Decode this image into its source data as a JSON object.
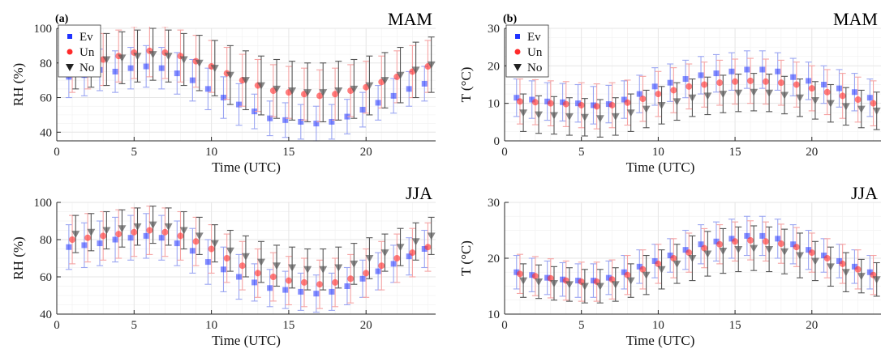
{
  "figure": {
    "x_ticks": [
      0,
      5,
      10,
      15,
      20
    ],
    "xlabel": "Time (UTC)",
    "legend": [
      "Ev",
      "Un",
      "No"
    ],
    "colors": {
      "Ev": "#1f32ff",
      "Un": "#ff2a2a",
      "No": "#555555",
      "Un_err": "#f5a3a3",
      "Ev_err": "#9aa5f2"
    }
  },
  "chart_data": [
    {
      "type": "scatter",
      "panel_tag": "(a)",
      "title": "MAM",
      "xlabel": "Time (UTC)",
      "ylabel": "RH (%)",
      "xlim": [
        0,
        24.5
      ],
      "ylim": [
        35,
        100
      ],
      "yticks": [
        40,
        60,
        80,
        100
      ],
      "x": [
        1,
        2,
        3,
        4,
        5,
        6,
        7,
        8,
        9,
        10,
        11,
        12,
        13,
        14,
        15,
        16,
        17,
        18,
        19,
        20,
        21,
        22,
        23,
        24
      ],
      "series": [
        {
          "name": "Ev",
          "values": [
            72,
            73,
            76,
            75,
            77,
            78,
            77,
            74,
            70,
            65,
            60,
            56,
            52,
            48,
            47,
            46,
            45,
            46,
            49,
            53,
            57,
            61,
            65,
            68
          ],
          "err_low": [
            12,
            12,
            12,
            12,
            12,
            12,
            12,
            12,
            12,
            12,
            12,
            12,
            10,
            10,
            10,
            10,
            10,
            10,
            10,
            10,
            10,
            10,
            10,
            10
          ],
          "err_high": [
            12,
            12,
            12,
            12,
            12,
            12,
            12,
            12,
            12,
            12,
            12,
            12,
            10,
            10,
            10,
            10,
            10,
            10,
            10,
            10,
            10,
            10,
            10,
            10
          ]
        },
        {
          "name": "Un",
          "values": [
            78,
            80,
            82,
            84,
            86,
            87,
            86,
            84,
            81,
            78,
            74,
            70,
            67,
            64,
            63,
            62,
            61,
            62,
            64,
            66,
            69,
            72,
            75,
            78
          ],
          "err_low": [
            15,
            15,
            15,
            15,
            15,
            15,
            15,
            15,
            15,
            15,
            15,
            15,
            15,
            15,
            15,
            15,
            15,
            15,
            15,
            15,
            15,
            15,
            15,
            15
          ],
          "err_high": [
            15,
            15,
            15,
            15,
            15,
            15,
            15,
            15,
            15,
            15,
            15,
            15,
            15,
            15,
            15,
            15,
            15,
            15,
            15,
            15,
            15,
            15,
            15,
            15
          ]
        },
        {
          "name": "No",
          "values": [
            80,
            81,
            82,
            83,
            84,
            85,
            84,
            82,
            80,
            77,
            73,
            70,
            67,
            65,
            64,
            63,
            63,
            64,
            65,
            67,
            70,
            73,
            76,
            79
          ],
          "err_low": [
            15,
            15,
            15,
            15,
            15,
            15,
            15,
            15,
            16,
            16,
            17,
            17,
            17,
            17,
            17,
            17,
            17,
            17,
            17,
            17,
            16,
            16,
            16,
            16
          ],
          "err_high": [
            15,
            15,
            15,
            15,
            15,
            15,
            15,
            15,
            16,
            16,
            17,
            17,
            17,
            17,
            17,
            17,
            17,
            17,
            17,
            17,
            16,
            16,
            16,
            16
          ]
        }
      ]
    },
    {
      "type": "scatter",
      "panel_tag": "(b)",
      "title": "MAM",
      "xlabel": "Time (UTC)",
      "ylabel": "T (°C)",
      "xlim": [
        0,
        24.5
      ],
      "ylim": [
        0,
        30
      ],
      "yticks": [
        0,
        10,
        20,
        30
      ],
      "x": [
        1,
        2,
        3,
        4,
        5,
        6,
        7,
        8,
        9,
        10,
        11,
        12,
        13,
        14,
        15,
        16,
        17,
        18,
        19,
        20,
        21,
        22,
        23,
        24
      ],
      "series": [
        {
          "name": "Ev",
          "values": [
            11.5,
            11,
            10.5,
            10.3,
            10,
            9.5,
            9.8,
            11,
            12.5,
            14.5,
            15.5,
            16.5,
            17.5,
            18,
            18.5,
            19,
            19,
            18.5,
            17,
            16,
            15,
            14,
            13,
            11.5
          ],
          "err_low": [
            5,
            5,
            5,
            5,
            5,
            5,
            5,
            5,
            5,
            5,
            5,
            5,
            5,
            5,
            5,
            5,
            5,
            5,
            5,
            5,
            5,
            5,
            5,
            5
          ],
          "err_high": [
            5,
            5,
            5,
            5,
            5,
            5,
            5,
            5,
            5,
            5,
            5,
            5,
            5,
            5,
            5,
            5,
            5,
            5,
            5,
            5,
            5,
            5,
            5,
            5
          ]
        },
        {
          "name": "Un",
          "values": [
            10.5,
            10.3,
            10,
            9.8,
            9.5,
            9.2,
            9.5,
            10.2,
            11.2,
            12.5,
            13.5,
            14.5,
            15,
            15.5,
            15.8,
            16,
            15.8,
            15.5,
            15,
            14,
            13,
            12,
            11,
            10
          ],
          "err_low": [
            6,
            6,
            6,
            6,
            6,
            6,
            6,
            6,
            6,
            6,
            6,
            6,
            6,
            6,
            6,
            6,
            6,
            6,
            6,
            6,
            6,
            6,
            6,
            6
          ],
          "err_high": [
            6,
            6,
            6,
            6,
            6,
            6,
            6,
            6,
            6,
            6,
            6,
            6,
            6,
            6,
            6,
            6,
            6,
            6,
            6,
            6,
            6,
            6,
            6,
            6
          ]
        },
        {
          "name": "No",
          "values": [
            7.5,
            7,
            6.8,
            6.5,
            6.3,
            6,
            6.5,
            7.5,
            8.5,
            9.5,
            10.5,
            11.5,
            12,
            12.5,
            12.8,
            13,
            12.8,
            12.2,
            11.5,
            10.8,
            10,
            9.2,
            8.5,
            8
          ],
          "err_low": [
            5,
            5,
            5,
            5,
            5,
            5,
            5,
            5,
            5,
            5,
            5,
            5,
            5,
            5,
            5,
            5,
            5,
            5,
            5,
            5,
            5,
            5,
            5,
            5
          ],
          "err_high": [
            5,
            5,
            5,
            5,
            5,
            5,
            5,
            5,
            5,
            5,
            5,
            5,
            5,
            5,
            5,
            5,
            5,
            5,
            5,
            5,
            5,
            5,
            5,
            5
          ]
        }
      ]
    },
    {
      "type": "scatter",
      "title": "JJA",
      "xlabel": "Time (UTC)",
      "ylabel": "RH (%)",
      "xlim": [
        0,
        24.5
      ],
      "ylim": [
        40,
        100
      ],
      "yticks": [
        40,
        60,
        80,
        100
      ],
      "x": [
        1,
        2,
        3,
        4,
        5,
        6,
        7,
        8,
        9,
        10,
        11,
        12,
        13,
        14,
        15,
        16,
        17,
        18,
        19,
        20,
        21,
        22,
        23,
        24
      ],
      "series": [
        {
          "name": "Ev",
          "values": [
            76,
            77,
            78,
            80,
            81,
            82,
            81,
            78,
            74,
            68,
            64,
            60,
            57,
            54,
            53,
            52,
            51,
            52,
            55,
            59,
            63,
            67,
            71,
            75
          ],
          "err_low": [
            12,
            12,
            12,
            12,
            12,
            12,
            12,
            12,
            12,
            12,
            12,
            12,
            10,
            10,
            10,
            10,
            10,
            10,
            10,
            10,
            10,
            10,
            10,
            10
          ],
          "err_high": [
            12,
            12,
            12,
            12,
            12,
            12,
            12,
            12,
            12,
            12,
            12,
            12,
            10,
            10,
            10,
            10,
            10,
            10,
            10,
            10,
            10,
            10,
            10,
            10
          ]
        },
        {
          "name": "Un",
          "values": [
            80,
            81,
            82,
            83,
            84,
            85,
            84,
            82,
            79,
            75,
            70,
            66,
            62,
            60,
            58,
            57,
            56,
            57,
            59,
            62,
            66,
            70,
            73,
            76
          ],
          "err_low": [
            13,
            13,
            13,
            13,
            13,
            13,
            13,
            13,
            13,
            13,
            13,
            13,
            13,
            13,
            13,
            13,
            13,
            13,
            13,
            13,
            13,
            13,
            13,
            13
          ],
          "err_high": [
            13,
            13,
            13,
            13,
            13,
            13,
            13,
            13,
            13,
            13,
            13,
            13,
            13,
            13,
            13,
            13,
            13,
            13,
            13,
            13,
            13,
            13,
            13,
            13
          ]
        },
        {
          "name": "No",
          "values": [
            83,
            84,
            85,
            86,
            87,
            88,
            87,
            85,
            82,
            78,
            74,
            71,
            68,
            66,
            65,
            64,
            64,
            65,
            67,
            70,
            73,
            76,
            79,
            82
          ],
          "err_low": [
            10,
            10,
            10,
            10,
            10,
            10,
            10,
            10,
            10,
            10,
            11,
            11,
            11,
            11,
            11,
            11,
            11,
            11,
            11,
            11,
            10,
            10,
            10,
            10
          ],
          "err_high": [
            10,
            10,
            10,
            10,
            10,
            10,
            10,
            10,
            10,
            10,
            11,
            11,
            11,
            11,
            11,
            11,
            11,
            11,
            11,
            11,
            10,
            10,
            10,
            10
          ]
        }
      ]
    },
    {
      "type": "scatter",
      "title": "JJA",
      "xlabel": "Time (UTC)",
      "ylabel": "T (°C)",
      "xlim": [
        0,
        24.5
      ],
      "ylim": [
        10,
        30
      ],
      "yticks": [
        10,
        20,
        30
      ],
      "x": [
        1,
        2,
        3,
        4,
        5,
        6,
        7,
        8,
        9,
        10,
        11,
        12,
        13,
        14,
        15,
        16,
        17,
        18,
        19,
        20,
        21,
        22,
        23,
        24
      ],
      "series": [
        {
          "name": "Ev",
          "values": [
            17.5,
            17,
            16.5,
            16.2,
            16,
            16,
            16.5,
            17.5,
            18.5,
            19.5,
            20.5,
            21.5,
            22.5,
            23,
            23.5,
            24,
            24,
            23.5,
            22.5,
            21.5,
            20.5,
            19.5,
            18.5,
            17.5
          ],
          "err_low": [
            3,
            3,
            3,
            3,
            3,
            3,
            3,
            3,
            3,
            3,
            3,
            3.5,
            3.5,
            3.5,
            3.5,
            3.5,
            3.5,
            3.5,
            3.5,
            3.5,
            3,
            3,
            3,
            3
          ],
          "err_high": [
            3,
            3,
            3,
            3,
            3,
            3,
            3,
            3,
            3,
            3,
            3,
            3.5,
            3.5,
            3.5,
            3.5,
            3.5,
            3.5,
            3.5,
            3.5,
            3.5,
            3,
            3,
            3,
            3
          ]
        },
        {
          "name": "Un",
          "values": [
            17.2,
            16.8,
            16.4,
            16,
            15.8,
            15.8,
            16.2,
            17,
            18,
            19,
            20,
            21,
            21.8,
            22.5,
            23,
            23.2,
            23,
            22.6,
            22,
            21,
            20,
            19,
            18,
            17
          ],
          "err_low": [
            3.5,
            3.5,
            3.5,
            3.5,
            3.5,
            3.5,
            3.5,
            3.5,
            3.5,
            3.5,
            3.5,
            3.5,
            3.5,
            3.5,
            3.5,
            3.5,
            3.5,
            3.5,
            3.5,
            3.5,
            3.5,
            3.5,
            3.5,
            3.5
          ],
          "err_high": [
            3.5,
            3.5,
            3.5,
            3.5,
            3.5,
            3.5,
            3.5,
            3.5,
            3.5,
            3.5,
            3.5,
            3.5,
            3.5,
            3.5,
            3.5,
            3.5,
            3.5,
            3.5,
            3.5,
            3.5,
            3.5,
            3.5,
            3.5,
            3.5
          ]
        },
        {
          "name": "No",
          "values": [
            16,
            15.8,
            15.5,
            15.3,
            15,
            15,
            15.3,
            16,
            17,
            18,
            19,
            20,
            20.8,
            21.3,
            21.6,
            21.8,
            21.6,
            21.2,
            20.5,
            19.5,
            18.5,
            17.5,
            16.8,
            16.2
          ],
          "err_low": [
            3,
            3,
            3,
            3,
            3,
            3,
            3,
            3,
            3.5,
            3.5,
            3.5,
            4,
            4,
            4,
            4,
            4,
            4,
            4,
            4,
            3.5,
            3.5,
            3.5,
            3,
            3
          ],
          "err_high": [
            3,
            3,
            3,
            3,
            3,
            3,
            3,
            3,
            3.5,
            3.5,
            3.5,
            4,
            4,
            4,
            4,
            4,
            4,
            4,
            4,
            3.5,
            3.5,
            3.5,
            3,
            3
          ]
        }
      ]
    }
  ]
}
